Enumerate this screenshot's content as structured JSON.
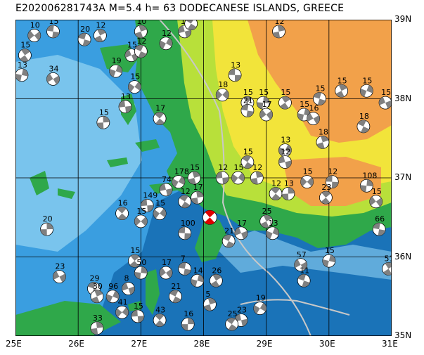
{
  "title": "E202006281743A M=5.4 h= 63 DODECANESE ISLANDS, GREECE",
  "map": {
    "lon_range": [
      25,
      31
    ],
    "lat_range": [
      35,
      39
    ],
    "x_ticks": [
      "25E",
      "26E",
      "27E",
      "28E",
      "29E",
      "30E",
      "31E"
    ],
    "y_ticks": [
      "39N",
      "38N",
      "37N",
      "36N",
      "35N"
    ],
    "colors": {
      "deep_sea": "#1a73b8",
      "mid_sea": "#3a9ee0",
      "shallow_sea": "#8fd0f2",
      "lowland": "#2fa84a",
      "upland": "#b8e03a",
      "highland": "#f2e43a",
      "mountain": "#f2a14a",
      "grid": "#000000",
      "plate_boundary": "#c8c8c8",
      "event_mechanism": "#e00000"
    }
  },
  "event": {
    "lon": 28.1,
    "lat": 36.5
  },
  "mechanisms": [
    {
      "lon": 25.3,
      "lat": 38.8,
      "label": "10"
    },
    {
      "lon": 25.6,
      "lat": 38.85,
      "label": "15"
    },
    {
      "lon": 25.15,
      "lat": 38.55,
      "label": "15"
    },
    {
      "lon": 25.1,
      "lat": 38.3,
      "label": "13"
    },
    {
      "lon": 25.6,
      "lat": 38.25,
      "label": "34"
    },
    {
      "lon": 26.1,
      "lat": 38.75,
      "label": "20"
    },
    {
      "lon": 26.35,
      "lat": 38.8,
      "label": "12"
    },
    {
      "lon": 26.6,
      "lat": 38.35,
      "label": "19"
    },
    {
      "lon": 26.85,
      "lat": 38.55,
      "label": "15"
    },
    {
      "lon": 27.0,
      "lat": 38.6,
      "label": "12"
    },
    {
      "lon": 27.0,
      "lat": 38.85,
      "label": "10"
    },
    {
      "lon": 27.4,
      "lat": 38.7,
      "label": "12"
    },
    {
      "lon": 27.7,
      "lat": 38.85,
      "label": "16"
    },
    {
      "lon": 27.8,
      "lat": 38.95,
      "label": "10"
    },
    {
      "lon": 29.2,
      "lat": 38.85,
      "label": "12"
    },
    {
      "lon": 26.9,
      "lat": 38.15,
      "label": "15"
    },
    {
      "lon": 26.75,
      "lat": 37.9,
      "label": "13"
    },
    {
      "lon": 27.3,
      "lat": 37.75,
      "label": "17"
    },
    {
      "lon": 26.4,
      "lat": 37.7,
      "label": "15"
    },
    {
      "lon": 28.3,
      "lat": 38.05,
      "label": "18"
    },
    {
      "lon": 28.5,
      "lat": 38.3,
      "label": "13"
    },
    {
      "lon": 28.7,
      "lat": 37.95,
      "label": "15"
    },
    {
      "lon": 28.95,
      "lat": 37.95,
      "label": "15"
    },
    {
      "lon": 29.0,
      "lat": 37.8,
      "label": "17"
    },
    {
      "lon": 28.7,
      "lat": 37.85,
      "label": "21"
    },
    {
      "lon": 29.3,
      "lat": 37.95,
      "label": "15"
    },
    {
      "lon": 29.6,
      "lat": 37.8,
      "label": "15"
    },
    {
      "lon": 29.75,
      "lat": 37.75,
      "label": "16"
    },
    {
      "lon": 29.85,
      "lat": 38.0,
      "label": "15"
    },
    {
      "lon": 30.2,
      "lat": 38.1,
      "label": "15"
    },
    {
      "lon": 30.6,
      "lat": 38.1,
      "label": "15"
    },
    {
      "lon": 30.9,
      "lat": 37.95,
      "label": "15"
    },
    {
      "lon": 30.55,
      "lat": 37.65,
      "label": "18"
    },
    {
      "lon": 29.9,
      "lat": 37.45,
      "label": "18"
    },
    {
      "lon": 29.3,
      "lat": 37.35,
      "label": "13"
    },
    {
      "lon": 29.3,
      "lat": 37.2,
      "label": "12"
    },
    {
      "lon": 28.7,
      "lat": 37.2,
      "label": "15"
    },
    {
      "lon": 28.85,
      "lat": 37.0,
      "label": "12"
    },
    {
      "lon": 28.55,
      "lat": 37.0,
      "label": "15"
    },
    {
      "lon": 28.3,
      "lat": 37.0,
      "label": "12"
    },
    {
      "lon": 29.15,
      "lat": 36.8,
      "label": "12"
    },
    {
      "lon": 29.35,
      "lat": 36.8,
      "label": "13"
    },
    {
      "lon": 29.65,
      "lat": 36.95,
      "label": "15"
    },
    {
      "lon": 30.05,
      "lat": 36.95,
      "label": "12"
    },
    {
      "lon": 29.95,
      "lat": 36.75,
      "label": "23"
    },
    {
      "lon": 30.6,
      "lat": 36.9,
      "label": "108"
    },
    {
      "lon": 30.75,
      "lat": 36.7,
      "label": "15"
    },
    {
      "lon": 30.8,
      "lat": 36.35,
      "label": "66"
    },
    {
      "lon": 30.95,
      "lat": 35.85,
      "label": "51"
    },
    {
      "lon": 30.0,
      "lat": 35.95,
      "label": "15"
    },
    {
      "lon": 29.55,
      "lat": 35.9,
      "label": "57"
    },
    {
      "lon": 29.6,
      "lat": 35.7,
      "label": "11"
    },
    {
      "lon": 29.0,
      "lat": 36.45,
      "label": "25"
    },
    {
      "lon": 29.1,
      "lat": 36.3,
      "label": "13"
    },
    {
      "lon": 28.6,
      "lat": 36.3,
      "label": "17"
    },
    {
      "lon": 28.4,
      "lat": 36.2,
      "label": "21"
    },
    {
      "lon": 27.85,
      "lat": 37.0,
      "label": "15"
    },
    {
      "lon": 27.6,
      "lat": 36.95,
      "label": "178"
    },
    {
      "lon": 27.4,
      "lat": 36.85,
      "label": "74"
    },
    {
      "lon": 27.7,
      "lat": 36.7,
      "label": "12"
    },
    {
      "lon": 27.9,
      "lat": 36.75,
      "label": "17"
    },
    {
      "lon": 27.3,
      "lat": 36.55,
      "label": "15"
    },
    {
      "lon": 27.1,
      "lat": 36.65,
      "label": "149"
    },
    {
      "lon": 26.7,
      "lat": 36.55,
      "label": "16"
    },
    {
      "lon": 25.5,
      "lat": 36.35,
      "label": "20"
    },
    {
      "lon": 27.0,
      "lat": 36.45,
      "label": "15"
    },
    {
      "lon": 27.7,
      "lat": 36.3,
      "label": "100"
    },
    {
      "lon": 26.9,
      "lat": 35.95,
      "label": "15"
    },
    {
      "lon": 27.0,
      "lat": 35.8,
      "label": "50"
    },
    {
      "lon": 27.4,
      "lat": 35.8,
      "label": "17"
    },
    {
      "lon": 27.7,
      "lat": 35.85,
      "label": "7"
    },
    {
      "lon": 28.2,
      "lat": 35.7,
      "label": "26"
    },
    {
      "lon": 27.9,
      "lat": 35.7,
      "label": "14"
    },
    {
      "lon": 25.7,
      "lat": 35.75,
      "label": "23"
    },
    {
      "lon": 26.25,
      "lat": 35.6,
      "label": "29"
    },
    {
      "lon": 26.3,
      "lat": 35.5,
      "label": "30"
    },
    {
      "lon": 26.55,
      "lat": 35.5,
      "label": "96"
    },
    {
      "lon": 26.8,
      "lat": 35.6,
      "label": "8"
    },
    {
      "lon": 27.55,
      "lat": 35.5,
      "label": "21"
    },
    {
      "lon": 28.1,
      "lat": 35.4,
      "label": "5"
    },
    {
      "lon": 28.9,
      "lat": 35.35,
      "label": "19"
    },
    {
      "lon": 28.6,
      "lat": 35.2,
      "label": "23"
    },
    {
      "lon": 28.45,
      "lat": 35.15,
      "label": "25"
    },
    {
      "lon": 26.3,
      "lat": 35.1,
      "label": "33"
    },
    {
      "lon": 26.7,
      "lat": 35.3,
      "label": "41"
    },
    {
      "lon": 26.95,
      "lat": 35.25,
      "label": "15"
    },
    {
      "lon": 27.3,
      "lat": 35.2,
      "label": "43"
    },
    {
      "lon": 27.75,
      "lat": 35.15,
      "label": "16"
    }
  ]
}
